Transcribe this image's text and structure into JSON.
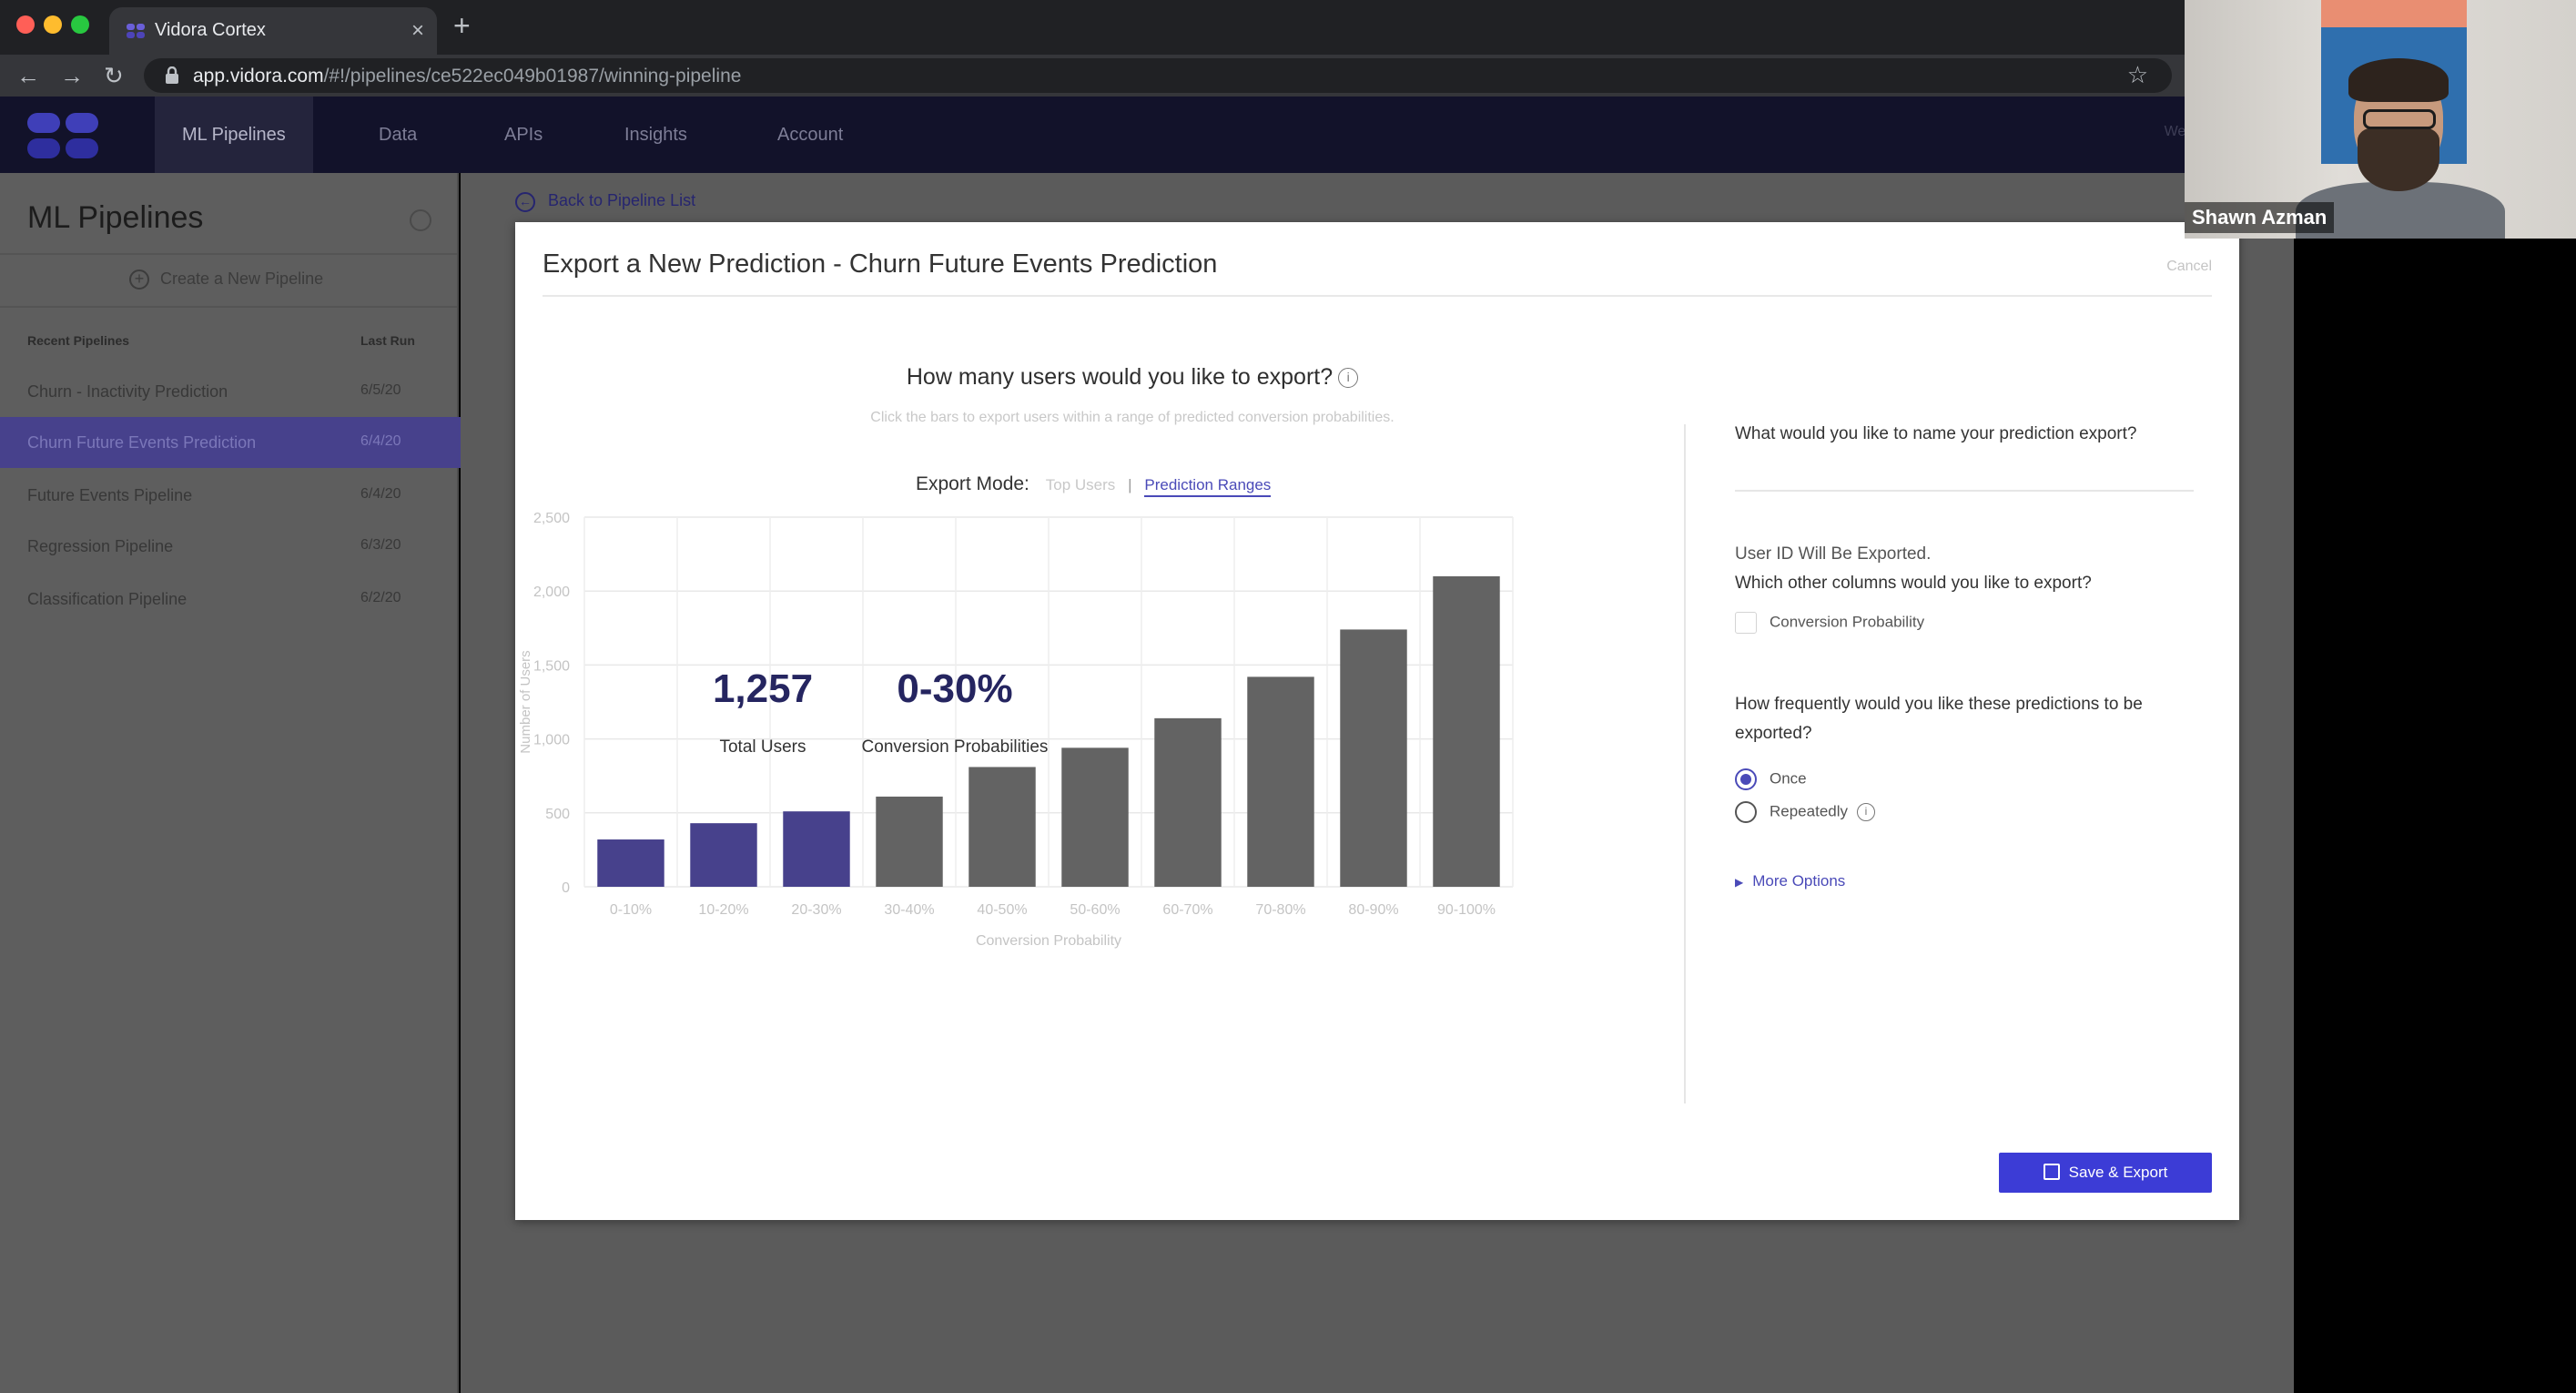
{
  "browser": {
    "tab_title": "Vidora Cortex",
    "url_host": "app.vidora.com",
    "url_path": "/#!/pipelines/ce522ec049b01987/winning-pipeline"
  },
  "nav": {
    "items": [
      "ML Pipelines",
      "Data",
      "APIs",
      "Insights",
      "Account"
    ],
    "right_text": "Welcome, Carole"
  },
  "sidebar": {
    "title": "ML Pipelines",
    "create_label": "Create a New Pipeline",
    "col_recent": "Recent Pipelines",
    "col_last_run": "Last Run",
    "rows": [
      {
        "name": "Churn - Inactivity Prediction",
        "date": "6/5/20"
      },
      {
        "name": "Churn Future Events Prediction",
        "date": "6/4/20"
      },
      {
        "name": "Future Events Pipeline",
        "date": "6/4/20"
      },
      {
        "name": "Regression Pipeline",
        "date": "6/3/20"
      },
      {
        "name": "Classification Pipeline",
        "date": "6/2/20"
      }
    ]
  },
  "back_link": "Back to Pipeline List",
  "modal": {
    "title": "Export a New Prediction - Churn Future Events Prediction",
    "cancel": "Cancel",
    "question": "How many users would you like to export?",
    "subtitle": "Click the bars to export users within a range of predicted conversion probabilities.",
    "mode_label": "Export Mode:",
    "mode_option1": "Top Users",
    "mode_sep": "|",
    "mode_option2": "Prediction Ranges",
    "stat1_value": "1,257",
    "stat1_label": "Total Users",
    "stat2_value": "0-30%",
    "stat2_label": "Conversion Probabilities",
    "name_question": "What would you like to name your prediction export?",
    "name_value": "",
    "user_id_note": "User ID Will Be Exported.",
    "columns_question": "Which other columns would you like to export?",
    "column_option": "Conversion Probability",
    "frequency_question": "How frequently would you like these predictions to be exported?",
    "freq_once": "Once",
    "freq_repeatedly": "Repeatedly",
    "more_options": "More Options",
    "save_button": "Save & Export"
  },
  "chart_data": {
    "type": "bar",
    "categories": [
      "0-10%",
      "10-20%",
      "20-30%",
      "30-40%",
      "40-50%",
      "50-60%",
      "60-70%",
      "70-80%",
      "80-90%",
      "90-100%"
    ],
    "values": [
      320,
      430,
      510,
      610,
      810,
      940,
      1140,
      1420,
      1740,
      2100
    ],
    "selected": [
      true,
      true,
      true,
      false,
      false,
      false,
      false,
      false,
      false,
      false
    ],
    "xlabel": "Conversion Probability",
    "ylabel": "Number of Users",
    "ylim": [
      0,
      2500
    ],
    "yticks": [
      0,
      500,
      1000,
      1500,
      2000,
      2500
    ],
    "ytick_labels": [
      "0",
      "500",
      "1,000",
      "1,500",
      "2,000",
      "2,500"
    ],
    "grid": true,
    "colors": {
      "selected": "#47418c",
      "unselected": "#636363"
    }
  },
  "webcam": {
    "participant_name": "Shawn Azman"
  }
}
